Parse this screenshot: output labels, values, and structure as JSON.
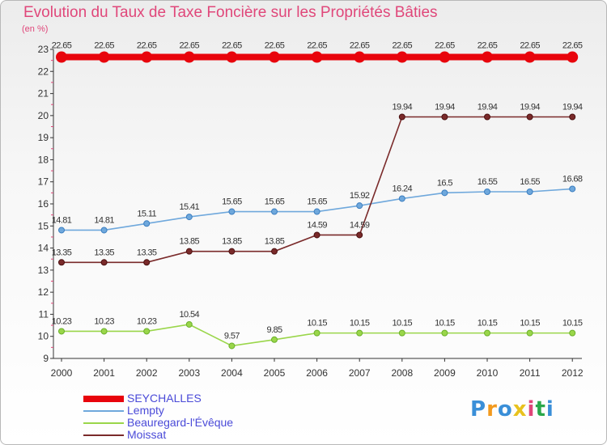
{
  "title": "Evolution du Taux de Taxe Foncière sur les Propriétés Bâties",
  "subtitle": "(en %)",
  "logo": "Proxiti",
  "chart_data": {
    "type": "line",
    "title": "Evolution du Taux de Taxe Foncière sur les Propriétés Bâties",
    "ylabel": "(en %)",
    "xlabel": "",
    "categories": [
      "2000",
      "2001",
      "2002",
      "2003",
      "2004",
      "2005",
      "2006",
      "2007",
      "2008",
      "2009",
      "2010",
      "2011",
      "2012"
    ],
    "ylim": [
      9,
      23
    ],
    "yticks": [
      9,
      10,
      11,
      12,
      13,
      14,
      15,
      16,
      17,
      18,
      19,
      20,
      21,
      22,
      23
    ],
    "grid": false,
    "legend_position": "bottom-left",
    "series": [
      {
        "name": "SEYCHALLES",
        "color": "#e8040c",
        "values": [
          22.65,
          22.65,
          22.65,
          22.65,
          22.65,
          22.65,
          22.65,
          22.65,
          22.65,
          22.65,
          22.65,
          22.65,
          22.65
        ]
      },
      {
        "name": "Lempty",
        "color": "#6fa8dc",
        "values": [
          14.81,
          14.81,
          15.11,
          15.41,
          15.65,
          15.65,
          15.65,
          15.92,
          16.24,
          16.5,
          16.55,
          16.55,
          16.68
        ]
      },
      {
        "name": "Beauregard-l'Évêque",
        "color": "#9ad64a",
        "values": [
          10.23,
          10.23,
          10.23,
          10.54,
          9.57,
          9.85,
          10.15,
          10.15,
          10.15,
          10.15,
          10.15,
          10.15,
          10.15
        ]
      },
      {
        "name": "Moissat",
        "color": "#7a2a2a",
        "values": [
          13.35,
          13.35,
          13.35,
          13.85,
          13.85,
          13.85,
          14.59,
          14.59,
          19.94,
          19.94,
          19.94,
          19.94,
          19.94
        ]
      }
    ]
  }
}
